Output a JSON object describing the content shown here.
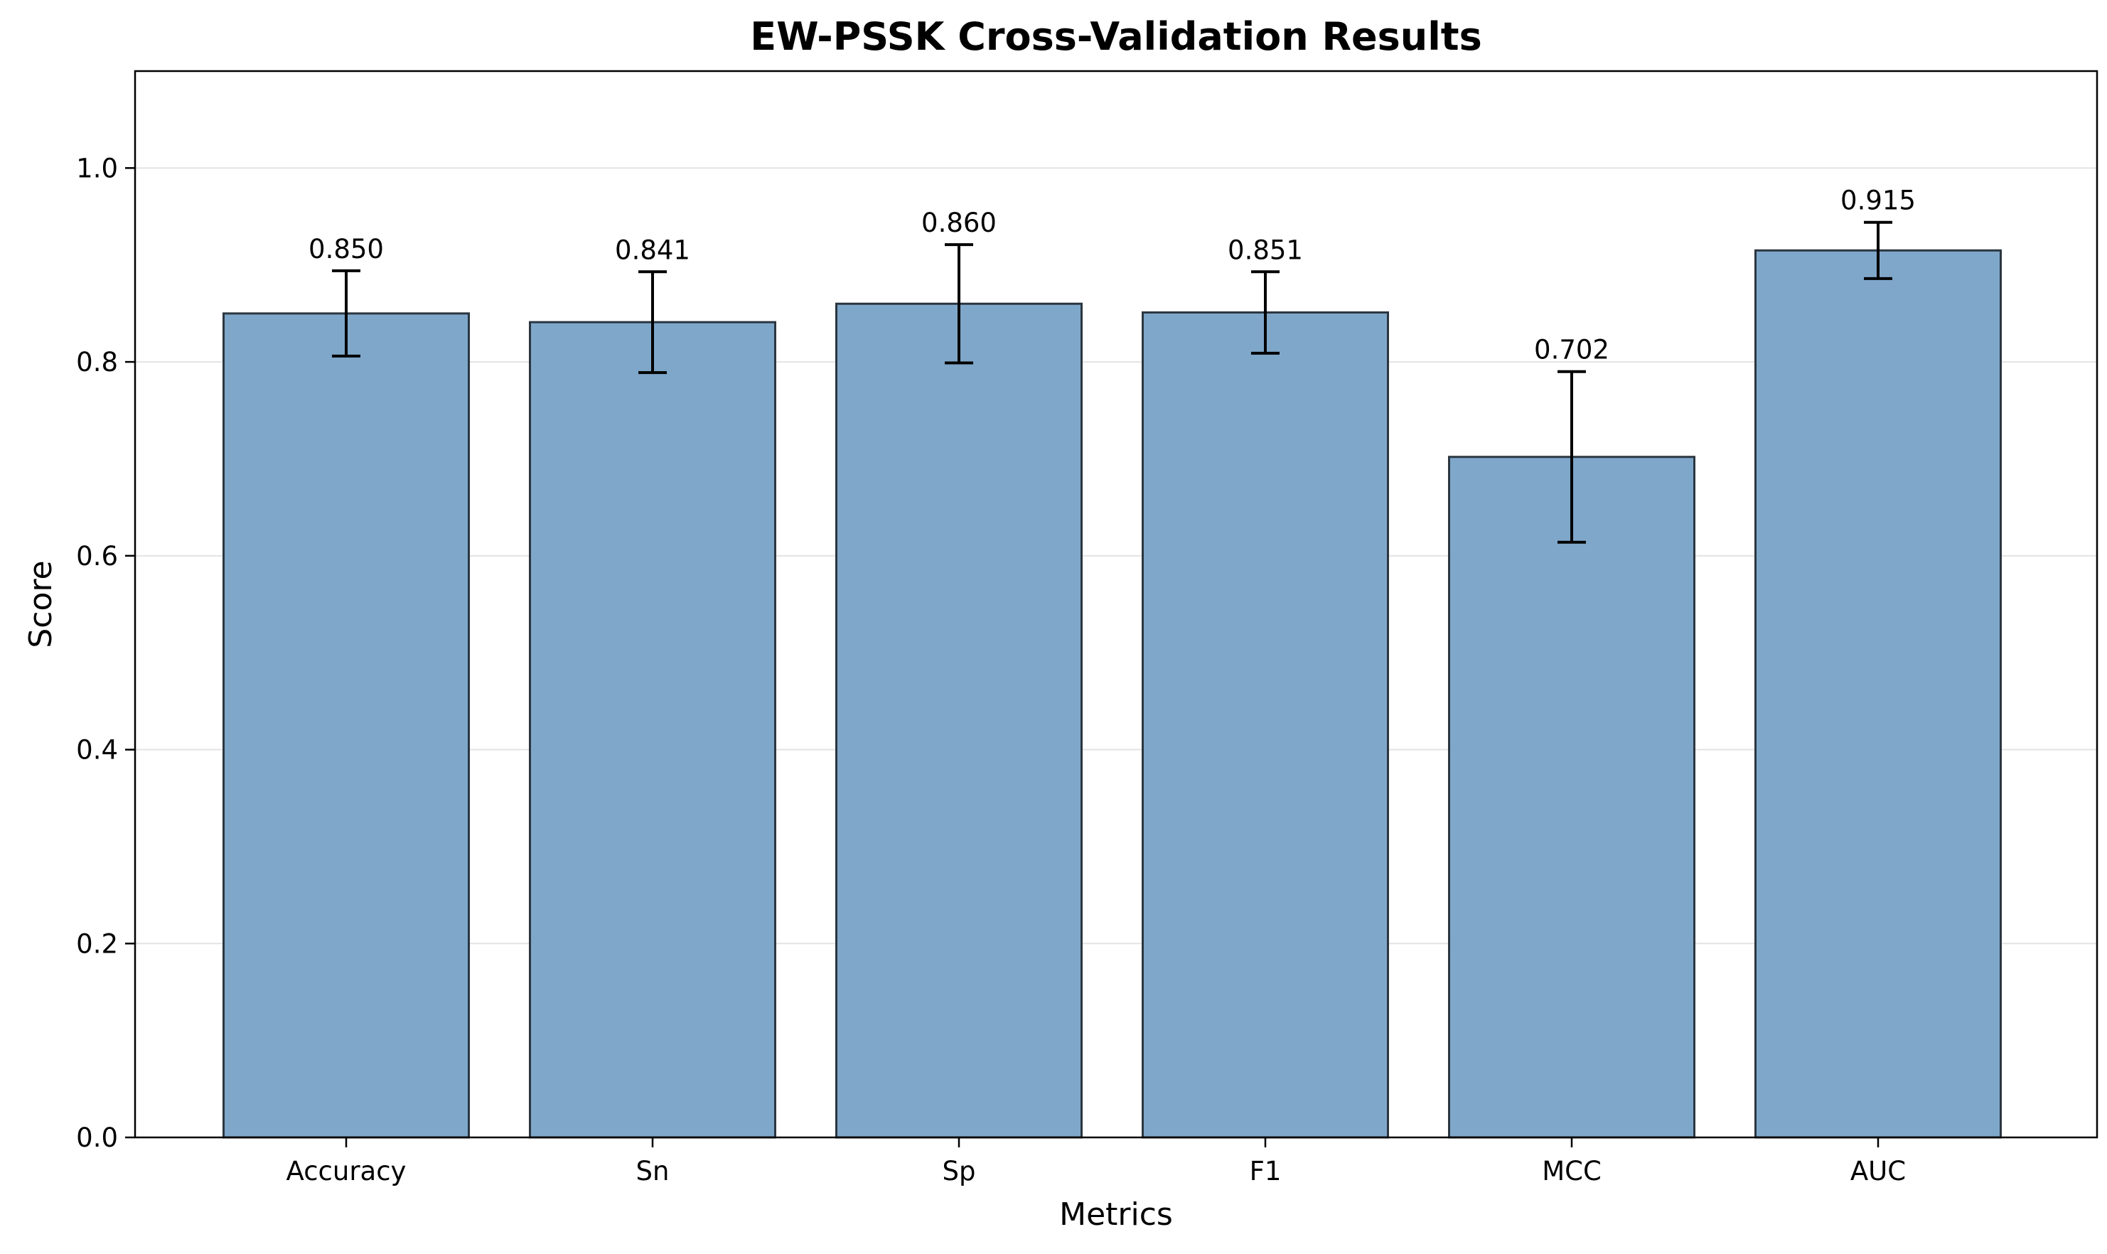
{
  "chart_data": {
    "type": "bar",
    "title": "EW-PSSK Cross-Validation Results",
    "xlabel": "Metrics",
    "ylabel": "Score",
    "categories": [
      "Accuracy",
      "Sn",
      "Sp",
      "F1",
      "MCC",
      "AUC"
    ],
    "values": [
      0.85,
      0.841,
      0.86,
      0.851,
      0.702,
      0.915
    ],
    "errors": [
      0.044,
      0.052,
      0.061,
      0.042,
      0.088,
      0.029
    ],
    "data_labels": [
      "0.850",
      "0.841",
      "0.860",
      "0.851",
      "0.702",
      "0.915"
    ],
    "ylim": [
      0,
      1.1
    ],
    "yticks": [
      0.0,
      0.2,
      0.4,
      0.6,
      0.8,
      1.0
    ],
    "ytick_labels": [
      "0.0",
      "0.2",
      "0.4",
      "0.6",
      "0.8",
      "1.0"
    ],
    "grid": "y",
    "legend": "none",
    "colors": {
      "bar_fill": "#7fa7ca",
      "bar_edge": "#2b3640",
      "error_bar": "#000000",
      "grid": "#e3e3e3"
    }
  }
}
